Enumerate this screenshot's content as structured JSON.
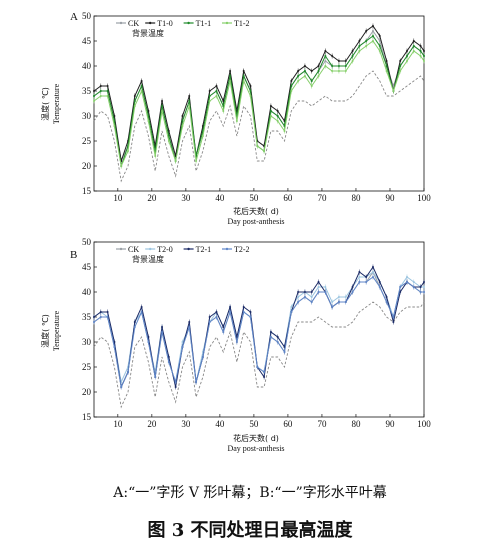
{
  "caption": "A:“一”字形  V   形叶幕；B:“一”字形水平叶幕",
  "figure_title": "图 3  不同处理日最高温度",
  "colors": {
    "CK": "#9aa0a6",
    "T1-0": "#1f1f1f",
    "T1-1": "#1f8a2a",
    "T1-2": "#86cf6a",
    "T2-0": "#9cc5e0",
    "T2-1": "#1b2a66",
    "T2-2": "#5f86c9",
    "background": "#e03030"
  },
  "chart_data": [
    {
      "type": "line",
      "panel": "A",
      "xlabel_cn": "花后天数( d)",
      "xlabel_en": "Day post-anthesis",
      "ylabel_cn": "温度( ℃)",
      "ylabel_en": "Temperature",
      "xlim": [
        3,
        100
      ],
      "ylim": [
        15,
        50
      ],
      "xticks": [
        10,
        20,
        30,
        40,
        50,
        60,
        70,
        80,
        90,
        100
      ],
      "yticks": [
        15,
        20,
        25,
        30,
        35,
        40,
        45,
        50
      ],
      "legend": [
        "CK",
        "T1-0",
        "T1-1",
        "T1-2",
        "背景温度"
      ],
      "error_bars": true,
      "x": [
        3,
        5,
        7,
        9,
        11,
        13,
        15,
        17,
        19,
        21,
        23,
        25,
        27,
        29,
        31,
        33,
        35,
        37,
        39,
        41,
        43,
        45,
        47,
        49,
        51,
        53,
        55,
        57,
        59,
        61,
        63,
        65,
        67,
        69,
        71,
        73,
        75,
        77,
        79,
        81,
        83,
        85,
        87,
        89,
        91,
        93,
        95,
        97,
        99,
        100
      ],
      "series": [
        {
          "name": "CK",
          "values": [
            34,
            35,
            35,
            29,
            21,
            24,
            33,
            36,
            30,
            23,
            32,
            26,
            22,
            29,
            33,
            22,
            27,
            34,
            35,
            32,
            38,
            30,
            38,
            35,
            25,
            24,
            31,
            30,
            28,
            36,
            38,
            39,
            37,
            39,
            41,
            40,
            40,
            40,
            42,
            44,
            45,
            47,
            45,
            40,
            36,
            40,
            42,
            44,
            43,
            42
          ]
        },
        {
          "name": "T1-0",
          "values": [
            35,
            36,
            36,
            30,
            21,
            25,
            34,
            37,
            31,
            24,
            33,
            27,
            22,
            30,
            34,
            22,
            28,
            35,
            36,
            33,
            39,
            31,
            39,
            36,
            25,
            24,
            32,
            31,
            29,
            37,
            39,
            40,
            39,
            40,
            43,
            42,
            41,
            41,
            43,
            45,
            47,
            48,
            46,
            41,
            35,
            41,
            43,
            45,
            44,
            43
          ]
        },
        {
          "name": "T1-1",
          "values": [
            34,
            35,
            35,
            29,
            20,
            24,
            33,
            36,
            30,
            23,
            32,
            26,
            21,
            29,
            33,
            22,
            27,
            34,
            35,
            32,
            38,
            30,
            38,
            35,
            24,
            23,
            31,
            30,
            28,
            36,
            38,
            39,
            37,
            39,
            42,
            40,
            40,
            40,
            42,
            44,
            45,
            46,
            44,
            40,
            35,
            40,
            42,
            44,
            43,
            42
          ]
        },
        {
          "name": "T1-2",
          "values": [
            33,
            34,
            34,
            28,
            20,
            23,
            32,
            35,
            29,
            22,
            31,
            25,
            21,
            28,
            32,
            21,
            26,
            33,
            34,
            31,
            37,
            29,
            37,
            34,
            24,
            23,
            30,
            29,
            27,
            35,
            37,
            38,
            36,
            38,
            40,
            39,
            39,
            39,
            41,
            43,
            44,
            45,
            43,
            39,
            35,
            39,
            41,
            43,
            42,
            41
          ]
        },
        {
          "name": "背景温度",
          "values": [
            29,
            31,
            30,
            25,
            17,
            20,
            28,
            31,
            26,
            19,
            27,
            22,
            18,
            25,
            28,
            19,
            23,
            29,
            31,
            28,
            32,
            26,
            32,
            30,
            21,
            21,
            27,
            27,
            25,
            31,
            33,
            33,
            32,
            33,
            34,
            33,
            33,
            33,
            34,
            36,
            38,
            39,
            37,
            34,
            34,
            35,
            36,
            37,
            38,
            37
          ]
        }
      ]
    },
    {
      "type": "line",
      "panel": "B",
      "xlabel_cn": "花后天数( d)",
      "xlabel_en": "Day post-anthesis",
      "ylabel_cn": "温度( ℃)",
      "ylabel_en": "Temperature",
      "xlim": [
        3,
        100
      ],
      "ylim": [
        15,
        50
      ],
      "xticks": [
        10,
        20,
        30,
        40,
        50,
        60,
        70,
        80,
        90,
        100
      ],
      "yticks": [
        15,
        20,
        25,
        30,
        35,
        40,
        45,
        50
      ],
      "legend": [
        "CK",
        "T2-0",
        "T2-1",
        "T2-2",
        "背景温度"
      ],
      "error_bars": true,
      "x": [
        3,
        5,
        7,
        9,
        11,
        13,
        15,
        17,
        19,
        21,
        23,
        25,
        27,
        29,
        31,
        33,
        35,
        37,
        39,
        41,
        43,
        45,
        47,
        49,
        51,
        53,
        55,
        57,
        59,
        61,
        63,
        65,
        67,
        69,
        71,
        73,
        75,
        77,
        79,
        81,
        83,
        85,
        87,
        89,
        91,
        93,
        95,
        97,
        99,
        100
      ],
      "series": [
        {
          "name": "CK",
          "values": [
            34,
            35,
            35,
            29,
            21,
            24,
            34,
            36,
            30,
            23,
            32,
            26,
            22,
            29,
            33,
            22,
            27,
            34,
            35,
            32,
            36,
            30,
            36,
            35,
            25,
            24,
            31,
            30,
            28,
            36,
            38,
            39,
            38,
            40,
            40,
            37,
            38,
            38,
            40,
            42,
            42,
            44,
            41,
            38,
            35,
            41,
            42,
            41,
            40,
            40
          ]
        },
        {
          "name": "T2-0",
          "values": [
            35,
            36,
            35,
            30,
            22,
            25,
            34,
            36,
            30,
            24,
            33,
            26,
            22,
            30,
            33,
            22,
            28,
            34,
            36,
            33,
            37,
            31,
            36,
            35,
            25,
            24,
            32,
            31,
            29,
            37,
            39,
            40,
            39,
            41,
            41,
            38,
            39,
            39,
            41,
            43,
            43,
            44,
            42,
            39,
            35,
            41,
            43,
            42,
            41,
            41
          ]
        },
        {
          "name": "T2-1",
          "values": [
            35,
            36,
            36,
            30,
            21,
            24,
            34,
            37,
            31,
            23,
            33,
            27,
            21,
            29,
            34,
            22,
            27,
            35,
            36,
            33,
            37,
            31,
            37,
            36,
            25,
            23,
            32,
            31,
            29,
            36,
            40,
            40,
            40,
            42,
            40,
            37,
            38,
            38,
            41,
            44,
            43,
            45,
            42,
            39,
            34,
            40,
            42,
            41,
            41,
            42
          ]
        },
        {
          "name": "T2-2",
          "values": [
            34,
            35,
            35,
            29,
            21,
            24,
            33,
            36,
            30,
            23,
            32,
            26,
            22,
            29,
            33,
            22,
            27,
            34,
            35,
            32,
            36,
            30,
            36,
            35,
            25,
            24,
            31,
            30,
            28,
            36,
            38,
            39,
            38,
            40,
            40,
            37,
            38,
            38,
            40,
            42,
            42,
            43,
            41,
            38,
            35,
            41,
            42,
            41,
            40,
            40
          ]
        },
        {
          "name": "背景温度",
          "values": [
            29,
            31,
            30,
            25,
            17,
            20,
            29,
            31,
            26,
            19,
            27,
            22,
            18,
            25,
            28,
            19,
            23,
            29,
            31,
            28,
            32,
            26,
            32,
            30,
            21,
            21,
            27,
            27,
            25,
            31,
            34,
            34,
            34,
            35,
            34,
            33,
            33,
            33,
            34,
            36,
            37,
            38,
            37,
            35,
            34,
            36,
            37,
            37,
            37,
            38
          ]
        }
      ]
    }
  ]
}
